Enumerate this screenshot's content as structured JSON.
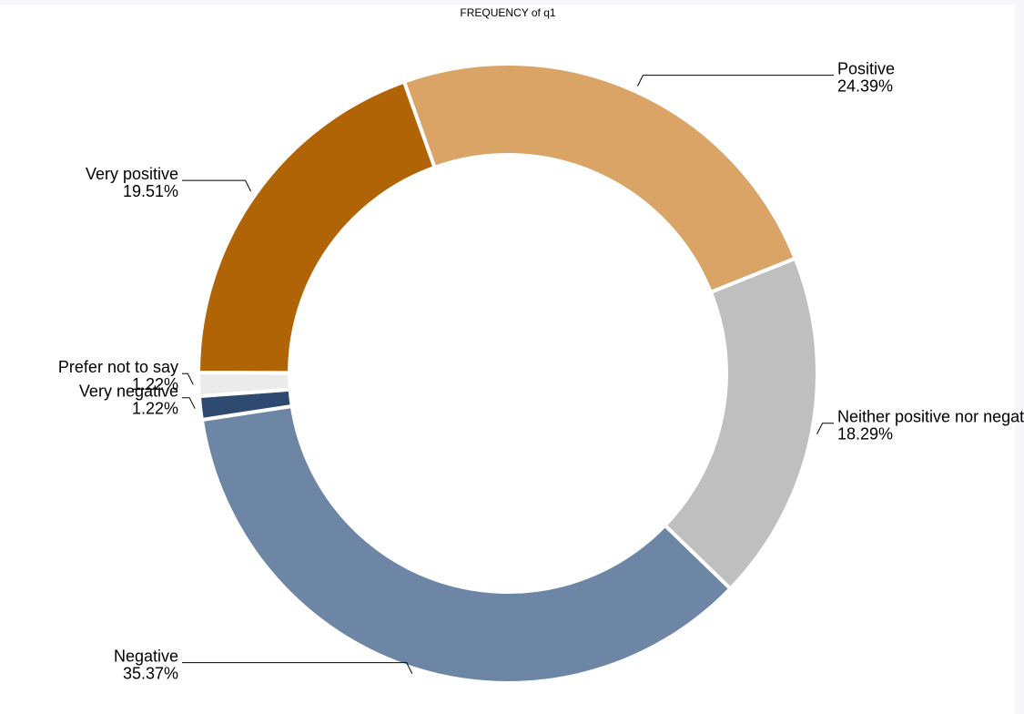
{
  "chart_data": {
    "type": "donut",
    "title": "FREQUENCY of q1",
    "categories": [
      "Positive",
      "Neither positive nor negative",
      "Negative",
      "Very negative",
      "Prefer not to say",
      "Very positive"
    ],
    "values": [
      24.39,
      18.29,
      35.37,
      1.22,
      1.22,
      19.51
    ],
    "value_labels": [
      "24.39%",
      "18.29%",
      "35.37%",
      "1.22%",
      "1.22%",
      "19.51%"
    ],
    "colors": [
      "#d9a466",
      "#bfbfbf",
      "#6d86a5",
      "#2e4a70",
      "#ebebeb",
      "#b06405"
    ]
  }
}
